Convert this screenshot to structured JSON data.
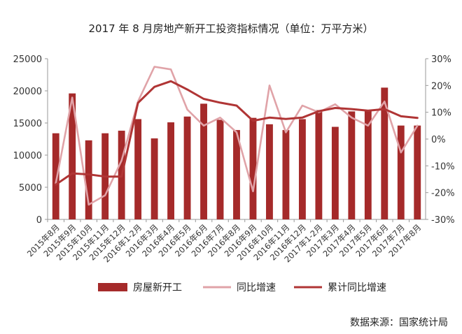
{
  "chart_data": {
    "type": "bar+line",
    "title": "2017 年 8 月房地产新开工投资指标情况（单位：万平方米）",
    "source": "数据来源：国家统计局",
    "categories": [
      "2015年8月",
      "2015年9月",
      "2015年10月",
      "2015年11月",
      "2015年12月",
      "2016年1-2月",
      "2016年3月",
      "2016年4月",
      "2016年5月",
      "2016年6月",
      "2016年7月",
      "2016年8月",
      "2016年9月",
      "2016年10月",
      "2016年11月",
      "2016年12月",
      "2017年1-2月",
      "2017年3月",
      "2017年4月",
      "2017年5月",
      "2017年6月",
      "2017年7月",
      "2017年8月"
    ],
    "y_left": {
      "ylim": [
        0,
        25000
      ],
      "ticks": [
        "0",
        "5000",
        "10000",
        "15000",
        "20000",
        "25000"
      ]
    },
    "y_right": {
      "ylim": [
        -30,
        30
      ],
      "ticks": [
        "-30%",
        "-20%",
        "-10%",
        "0%",
        "10%",
        "20%",
        "30%"
      ]
    },
    "series": [
      {
        "name": "房屋新开工",
        "type": "bar",
        "axis": "left",
        "color": "#a52a2a",
        "values": [
          13400,
          19600,
          12300,
          13400,
          13800,
          15600,
          12600,
          15100,
          16000,
          18000,
          15500,
          13900,
          15800,
          14800,
          13900,
          15600,
          17000,
          14400,
          16800,
          16900,
          20500,
          14600,
          14600
        ]
      },
      {
        "name": "同比增速",
        "type": "line",
        "axis": "right",
        "color": "#e0a3a8",
        "values": [
          -16.5,
          15.5,
          -24.5,
          -21,
          -8,
          14,
          27,
          26,
          11,
          5,
          8,
          2.5,
          -19.5,
          20,
          2.5,
          12.5,
          10,
          13,
          8,
          5,
          14,
          -5,
          5
        ]
      },
      {
        "name": "累计同比增速",
        "type": "line",
        "axis": "right",
        "color": "#b03535",
        "values": [
          -17,
          -12.8,
          -13.2,
          -14,
          -14,
          13.5,
          19.5,
          21.6,
          18.5,
          15,
          13.6,
          12.5,
          6.8,
          8,
          7.5,
          8,
          10.4,
          11.6,
          11.2,
          10.6,
          11.2,
          8.5,
          7.9
        ]
      }
    ],
    "legend_position": "bottom"
  }
}
